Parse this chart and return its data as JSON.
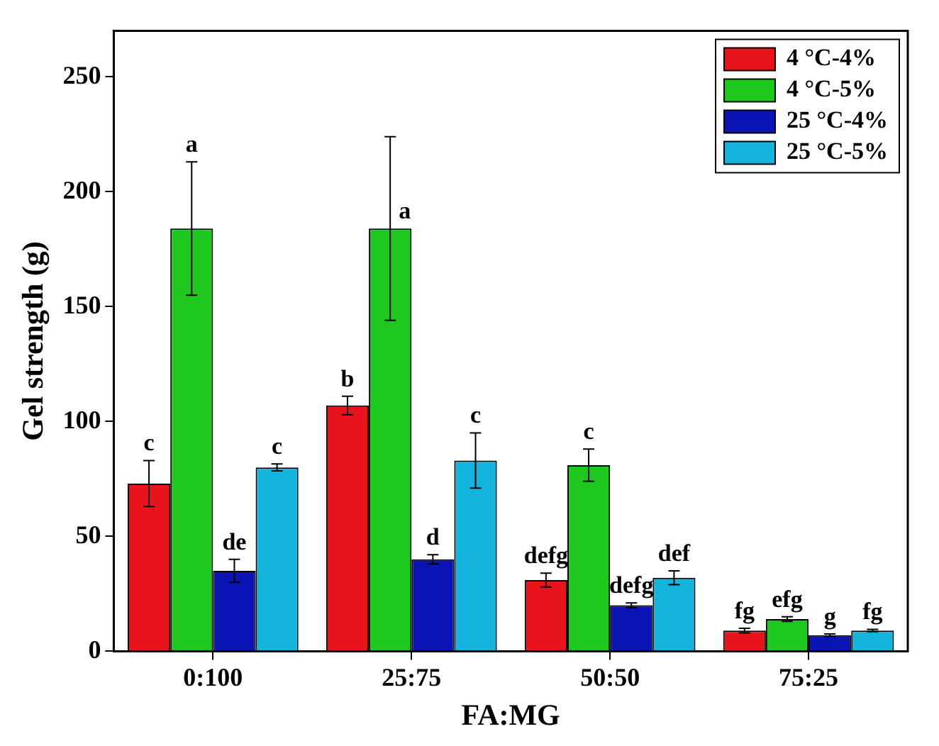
{
  "chart_data": {
    "type": "bar",
    "xlabel": "FA:MG",
    "ylabel": "Gel strength (g)",
    "categories": [
      "0:100",
      "25:75",
      "50:50",
      "75:25"
    ],
    "series": [
      {
        "name": "4 °C-4%",
        "color": "#e8141c",
        "values": [
          73,
          107,
          31,
          9
        ],
        "errors": [
          10,
          4,
          3,
          1
        ],
        "value_labels": [
          "c",
          "b",
          "defg",
          "fg"
        ]
      },
      {
        "name": "4 °C-5%",
        "color": "#1ec81e",
        "values": [
          184,
          184,
          81,
          14
        ],
        "errors": [
          29,
          40,
          7,
          1
        ],
        "value_labels": [
          "a",
          "a",
          "c",
          "efg"
        ]
      },
      {
        "name": "25 °C-4%",
        "color": "#0a14b4",
        "values": [
          35,
          40,
          20,
          7
        ],
        "errors": [
          5,
          2,
          1,
          0.5
        ],
        "value_labels": [
          "de",
          "d",
          "defg",
          "g"
        ]
      },
      {
        "name": "25 °C-5%",
        "color": "#14b4dc",
        "values": [
          80,
          83,
          32,
          9
        ],
        "errors": [
          1.5,
          12,
          3,
          0.5
        ],
        "value_labels": [
          "c",
          "c",
          "def",
          "fg"
        ]
      }
    ],
    "ylim": [
      0,
      270
    ],
    "yticks": [
      0,
      50,
      100,
      150,
      200,
      250
    ],
    "grid": false,
    "legend": "top right"
  }
}
